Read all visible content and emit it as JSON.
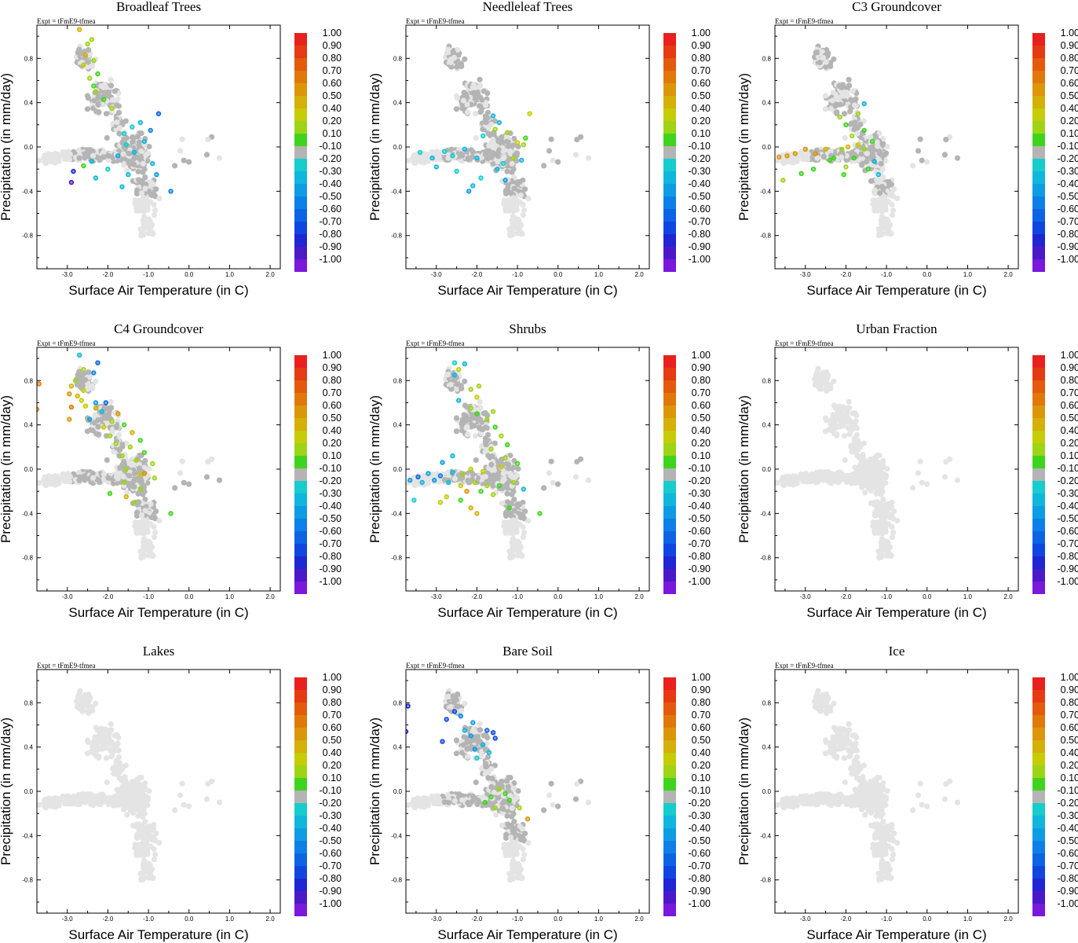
{
  "figure": {
    "expt_label": "Expt = tFmE9-tfmea",
    "xlabel": "Surface Air Temperature (in C)",
    "ylabel": "Precipitation (in mm/day)",
    "x_tick_labels": [
      "-3.0",
      "-2.0",
      "-1.0",
      "0.0",
      "1.0",
      "2.0"
    ],
    "y_tick_labels": [
      "0.8",
      "0.4",
      "0.0",
      "-0.4",
      "-0.8"
    ],
    "colorbar_labels": [
      "1.00",
      "0.90",
      "0.80",
      "0.70",
      "0.60",
      "0.50",
      "0.40",
      "0.20",
      "0.10",
      "-0.10",
      "-0.20",
      "-0.30",
      "-0.40",
      "-0.50",
      "-0.60",
      "-0.70",
      "-0.80",
      "-0.90",
      "-1.00"
    ],
    "colorbar_colors": [
      "#e8201e",
      "#e63a12",
      "#e45a0c",
      "#e0780a",
      "#dc960a",
      "#d4b008",
      "#c6cc06",
      "#9ed416",
      "#3ed41e",
      "#b4b4b4",
      "#16cccc",
      "#10b6dc",
      "#0e9ce4",
      "#0c80e8",
      "#0c64e4",
      "#1046e0",
      "#2026d4",
      "#4a1ac8",
      "#7a18dc"
    ],
    "colors": {
      "background_points": "#e4e4e4",
      "neutral_points": "#b4b4b4"
    }
  },
  "chart_data": [
    {
      "type": "scatter",
      "title": "Broadleaf Trees",
      "xlabel": "Surface Air Temperature (in C)",
      "ylabel": "Precipitation (in mm/day)",
      "xlim": [
        -3.75,
        2.25
      ],
      "ylim": [
        -1.1,
        1.1
      ],
      "points": [
        [
          -2.7,
          1.06
        ],
        [
          -2.4,
          0.97
        ],
        [
          -2.5,
          0.93
        ],
        [
          -2.55,
          0.83
        ],
        [
          -2.35,
          0.78
        ],
        [
          -2.6,
          0.74
        ],
        [
          -2.25,
          0.66
        ],
        [
          -2.45,
          0.62
        ],
        [
          -2.35,
          0.55
        ],
        [
          -2.3,
          0.5
        ],
        [
          -2.1,
          0.43
        ],
        [
          -1.9,
          0.35
        ],
        [
          -0.75,
          0.3
        ],
        [
          -1.2,
          0.22
        ],
        [
          -1.4,
          0.18
        ],
        [
          -0.95,
          0.15
        ],
        [
          -1.6,
          0.12
        ],
        [
          -1.1,
          0.05
        ],
        [
          -1.55,
          0.02
        ],
        [
          -1.35,
          -0.05
        ],
        [
          -1.75,
          -0.08
        ],
        [
          -2.4,
          -0.13
        ],
        [
          -2.6,
          -0.17
        ],
        [
          -2.0,
          -0.2
        ],
        [
          -0.9,
          -0.15
        ],
        [
          -0.8,
          -0.25
        ],
        [
          -1.5,
          -0.25
        ],
        [
          -2.3,
          -0.28
        ],
        [
          -2.85,
          -0.22
        ],
        [
          -2.9,
          -0.32
        ],
        [
          -1.65,
          -0.36
        ],
        [
          -0.45,
          -0.4
        ]
      ],
      "values": [
        0.5,
        0.3,
        0.3,
        0.5,
        0.2,
        0.4,
        0.1,
        0.3,
        0.1,
        0.2,
        0.1,
        0.2,
        -0.6,
        -0.3,
        -0.2,
        -0.5,
        -0.2,
        -0.3,
        -0.2,
        -0.3,
        -0.4,
        -0.3,
        0.1,
        -0.2,
        -0.3,
        -0.4,
        -0.3,
        -0.3,
        -0.8,
        -0.9,
        -0.3,
        -0.5
      ]
    },
    {
      "type": "scatter",
      "title": "Needleleaf Trees",
      "xlabel": "Surface Air Temperature (in C)",
      "ylabel": "Precipitation (in mm/day)",
      "xlim": [
        -3.75,
        2.25
      ],
      "ylim": [
        -1.1,
        1.1
      ],
      "points": [
        [
          -0.7,
          0.3
        ],
        [
          -1.6,
          0.28
        ],
        [
          -1.45,
          0.22
        ],
        [
          -1.55,
          0.16
        ],
        [
          -1.25,
          0.13
        ],
        [
          -1.85,
          0.1
        ],
        [
          -0.8,
          0.08
        ],
        [
          -1.0,
          0.04
        ],
        [
          -0.85,
          0.02
        ],
        [
          -2.3,
          -0.02
        ],
        [
          -2.8,
          -0.04
        ],
        [
          -2.6,
          -0.08
        ],
        [
          -3.1,
          -0.1
        ],
        [
          -3.4,
          -0.05
        ],
        [
          -2.0,
          -0.1
        ],
        [
          -1.1,
          -0.1
        ],
        [
          -0.9,
          -0.12
        ],
        [
          -1.35,
          -0.15
        ],
        [
          -1.5,
          -0.2
        ],
        [
          -2.5,
          -0.22
        ],
        [
          -3.0,
          -0.18
        ],
        [
          -1.9,
          -0.28
        ],
        [
          -1.3,
          -0.3
        ],
        [
          -2.2,
          -0.4
        ],
        [
          -2.1,
          -0.35
        ]
      ],
      "values": [
        0.4,
        -0.3,
        -0.3,
        0.3,
        0.2,
        -0.2,
        0.1,
        0.4,
        0.3,
        -0.3,
        -0.2,
        -0.2,
        -0.3,
        -0.2,
        -0.3,
        0.2,
        -0.3,
        -0.2,
        -0.3,
        -0.2,
        -0.3,
        -0.2,
        -0.4,
        -0.4,
        -0.3
      ]
    },
    {
      "type": "scatter",
      "title": "C3 Groundcover",
      "xlabel": "Surface Air Temperature (in C)",
      "ylabel": "Precipitation (in mm/day)",
      "xlim": [
        -3.75,
        2.25
      ],
      "ylim": [
        -1.1,
        1.1
      ],
      "points": [
        [
          -1.55,
          0.39
        ],
        [
          -1.7,
          0.3
        ],
        [
          -2.15,
          0.27
        ],
        [
          -2.0,
          0.2
        ],
        [
          -1.55,
          0.15
        ],
        [
          -1.85,
          0.1
        ],
        [
          -1.35,
          0.05
        ],
        [
          -1.55,
          -0.02
        ],
        [
          -1.7,
          0.02
        ],
        [
          -1.95,
          0.0
        ],
        [
          -2.1,
          -0.02
        ],
        [
          -2.5,
          -0.02
        ],
        [
          -2.75,
          -0.06
        ],
        [
          -3.0,
          -0.02
        ],
        [
          -3.25,
          -0.06
        ],
        [
          -3.45,
          -0.08
        ],
        [
          -3.65,
          -0.09
        ],
        [
          -2.3,
          -0.1
        ],
        [
          -1.8,
          -0.1
        ],
        [
          -1.3,
          -0.13
        ],
        [
          -2.0,
          -0.18
        ],
        [
          -2.4,
          -0.12
        ],
        [
          -1.45,
          -0.2
        ],
        [
          -1.2,
          -0.25
        ],
        [
          -3.55,
          -0.3
        ],
        [
          -3.1,
          -0.24
        ],
        [
          -2.8,
          -0.2
        ],
        [
          -2.05,
          -0.25
        ]
      ],
      "values": [
        -0.3,
        0.2,
        0.3,
        0.1,
        0.1,
        0.2,
        0.1,
        0.2,
        0.4,
        0.5,
        0.3,
        0.5,
        0.6,
        0.6,
        0.6,
        0.6,
        0.6,
        0.1,
        0.1,
        -0.3,
        0.2,
        0.1,
        0.1,
        -0.3,
        0.2,
        0.1,
        0.1,
        0.1
      ]
    },
    {
      "type": "scatter",
      "title": "C4 Groundcover",
      "xlabel": "Surface Air Temperature (in C)",
      "ylabel": "Precipitation (in mm/day)",
      "xlim": [
        -3.75,
        2.25
      ],
      "ylim": [
        -1.1,
        1.1
      ],
      "points": [
        [
          -2.7,
          1.03
        ],
        [
          -2.25,
          0.96
        ],
        [
          -2.6,
          0.9
        ],
        [
          -2.35,
          0.87
        ],
        [
          -2.8,
          0.8
        ],
        [
          -3.7,
          0.77
        ],
        [
          -2.9,
          0.75
        ],
        [
          -2.6,
          0.71
        ],
        [
          -2.95,
          0.68
        ],
        [
          -2.75,
          0.66
        ],
        [
          -2.65,
          0.62
        ],
        [
          -2.3,
          0.6
        ],
        [
          -2.05,
          0.6
        ],
        [
          -2.55,
          0.57
        ],
        [
          -2.9,
          0.56
        ],
        [
          -2.3,
          0.55
        ],
        [
          -3.75,
          0.54
        ],
        [
          -2.15,
          0.52
        ],
        [
          -1.75,
          0.5
        ],
        [
          -2.95,
          0.45
        ],
        [
          -2.45,
          0.45
        ],
        [
          -1.9,
          0.43
        ],
        [
          -1.6,
          0.4
        ],
        [
          -2.1,
          0.38
        ],
        [
          -1.4,
          0.33
        ],
        [
          -1.95,
          0.3
        ],
        [
          -1.2,
          0.26
        ],
        [
          -1.8,
          0.23
        ],
        [
          -1.45,
          0.2
        ],
        [
          -1.1,
          0.15
        ],
        [
          -1.65,
          0.12
        ],
        [
          -1.3,
          0.08
        ],
        [
          -0.9,
          0.05
        ],
        [
          -1.55,
          0.0
        ],
        [
          -1.2,
          -0.05
        ],
        [
          -0.85,
          -0.08
        ],
        [
          -1.6,
          -0.12
        ],
        [
          -1.2,
          -0.18
        ],
        [
          -1.55,
          -0.25
        ],
        [
          -1.95,
          -0.22
        ],
        [
          -1.35,
          -0.3
        ],
        [
          -0.45,
          -0.4
        ],
        [
          -1.1,
          -0.04
        ]
      ],
      "values": [
        -0.3,
        -0.6,
        0.3,
        -0.5,
        0.3,
        0.7,
        0.5,
        0.4,
        0.6,
        0.5,
        0.4,
        -0.4,
        -0.6,
        0.4,
        0.7,
        0.5,
        0.7,
        -0.3,
        0.6,
        0.6,
        -0.4,
        0.3,
        0.1,
        0.4,
        0.5,
        0.2,
        0.1,
        0.3,
        0.2,
        0.1,
        0.3,
        0.2,
        0.3,
        0.2,
        0.4,
        0.3,
        0.2,
        0.3,
        0.5,
        0.1,
        0.2,
        0.1,
        0.6
      ]
    },
    {
      "type": "scatter",
      "title": "Shrubs",
      "xlabel": "Surface Air Temperature (in C)",
      "ylabel": "Precipitation (in mm/day)",
      "xlim": [
        -3.75,
        2.25
      ],
      "ylim": [
        -1.1,
        1.1
      ],
      "points": [
        [
          -2.55,
          0.96
        ],
        [
          -2.3,
          0.95
        ],
        [
          -2.45,
          0.9
        ],
        [
          -2.55,
          0.85
        ],
        [
          -1.95,
          0.75
        ],
        [
          -2.15,
          0.72
        ],
        [
          -2.0,
          0.65
        ],
        [
          -2.45,
          0.62
        ],
        [
          -2.15,
          0.55
        ],
        [
          -1.6,
          0.52
        ],
        [
          -2.0,
          0.5
        ],
        [
          -1.75,
          0.45
        ],
        [
          -1.55,
          0.38
        ],
        [
          -1.4,
          0.3
        ],
        [
          -1.25,
          0.22
        ],
        [
          -1.65,
          0.18
        ],
        [
          -2.6,
          0.12
        ],
        [
          -2.85,
          0.06
        ],
        [
          -1.3,
          0.1
        ],
        [
          -1.0,
          0.05
        ],
        [
          -1.4,
          0.02
        ],
        [
          -1.85,
          -0.02
        ],
        [
          -2.15,
          0.0
        ],
        [
          -2.35,
          -0.05
        ],
        [
          -2.6,
          -0.03
        ],
        [
          -2.9,
          -0.06
        ],
        [
          -3.2,
          -0.04
        ],
        [
          -3.45,
          -0.07
        ],
        [
          -3.65,
          -0.1
        ],
        [
          -3.35,
          -0.12
        ],
        [
          -3.05,
          -0.1
        ],
        [
          -2.7,
          -0.12
        ],
        [
          -2.4,
          -0.15
        ],
        [
          -2.05,
          -0.12
        ],
        [
          -1.75,
          -0.15
        ],
        [
          -1.45,
          -0.15
        ],
        [
          -1.1,
          -0.12
        ],
        [
          -0.85,
          -0.18
        ],
        [
          -2.25,
          -0.2
        ],
        [
          -1.9,
          -0.2
        ],
        [
          -2.75,
          -0.25
        ],
        [
          -1.6,
          -0.23
        ],
        [
          -2.4,
          -0.28
        ],
        [
          -3.55,
          -0.28
        ],
        [
          -2.9,
          -0.3
        ],
        [
          -2.15,
          -0.35
        ],
        [
          -1.2,
          -0.35
        ],
        [
          -0.45,
          -0.4
        ],
        [
          -2.0,
          -0.4
        ]
      ],
      "values": [
        -0.2,
        -0.3,
        0.4,
        -0.3,
        0.3,
        0.2,
        0.4,
        -0.3,
        0.2,
        0.3,
        0.1,
        0.2,
        0.1,
        0.2,
        0.1,
        0.2,
        -0.3,
        -0.4,
        0.3,
        0.1,
        0.4,
        0.4,
        0.4,
        0.3,
        -0.3,
        -0.5,
        -0.4,
        -0.6,
        -0.4,
        -0.3,
        -0.4,
        -0.3,
        0.4,
        0.3,
        0.2,
        0.1,
        0.2,
        -0.3,
        0.6,
        0.1,
        0.4,
        0.2,
        0.1,
        -0.2,
        0.4,
        0.5,
        0.1,
        0.1,
        0.5
      ]
    },
    {
      "type": "scatter",
      "title": "Urban Fraction",
      "xlabel": "Surface Air Temperature (in C)",
      "ylabel": "Precipitation (in mm/day)",
      "xlim": [
        -3.75,
        2.25
      ],
      "ylim": [
        -1.1,
        1.1
      ],
      "points": [],
      "values": []
    },
    {
      "type": "scatter",
      "title": "Lakes",
      "xlabel": "Surface Air Temperature (in C)",
      "ylabel": "Precipitation (in mm/day)",
      "xlim": [
        -3.75,
        2.25
      ],
      "ylim": [
        -1.1,
        1.1
      ],
      "points": [],
      "values": []
    },
    {
      "type": "scatter",
      "title": "Bare Soil",
      "xlabel": "Surface Air Temperature (in C)",
      "ylabel": "Precipitation (in mm/day)",
      "xlim": [
        -3.75,
        2.25
      ],
      "ylim": [
        -1.1,
        1.1
      ],
      "points": [
        [
          -3.7,
          0.77
        ],
        [
          -2.55,
          0.72
        ],
        [
          -2.75,
          0.65
        ],
        [
          -2.4,
          0.68
        ],
        [
          -2.1,
          0.62
        ],
        [
          -1.75,
          0.55
        ],
        [
          -2.3,
          0.55
        ],
        [
          -1.6,
          0.53
        ],
        [
          -3.75,
          0.54
        ],
        [
          -2.15,
          0.5
        ],
        [
          -1.55,
          0.48
        ],
        [
          -2.85,
          0.45
        ],
        [
          -1.85,
          0.42
        ],
        [
          -2.05,
          0.38
        ],
        [
          -1.7,
          0.35
        ],
        [
          -2.0,
          0.3
        ],
        [
          -1.45,
          0.02
        ],
        [
          -1.65,
          -0.05
        ],
        [
          -1.2,
          -0.08
        ],
        [
          -0.95,
          -0.15
        ],
        [
          -1.55,
          -0.15
        ],
        [
          -1.3,
          -0.02
        ],
        [
          -0.75,
          -0.25
        ],
        [
          -1.8,
          -0.1
        ]
      ],
      "values": [
        -0.8,
        -0.7,
        -0.7,
        -0.5,
        -0.4,
        -0.6,
        -0.3,
        -0.7,
        -0.8,
        -0.4,
        -0.7,
        -0.7,
        -0.3,
        -0.4,
        -0.3,
        -0.2,
        0.2,
        0.1,
        0.1,
        0.2,
        0.2,
        0.1,
        0.6,
        0.1
      ]
    },
    {
      "type": "scatter",
      "title": "Ice",
      "xlabel": "Surface Air Temperature (in C)",
      "ylabel": "Precipitation (in mm/day)",
      "xlim": [
        -3.75,
        2.25
      ],
      "ylim": [
        -1.1,
        1.1
      ],
      "points": [],
      "values": []
    }
  ]
}
